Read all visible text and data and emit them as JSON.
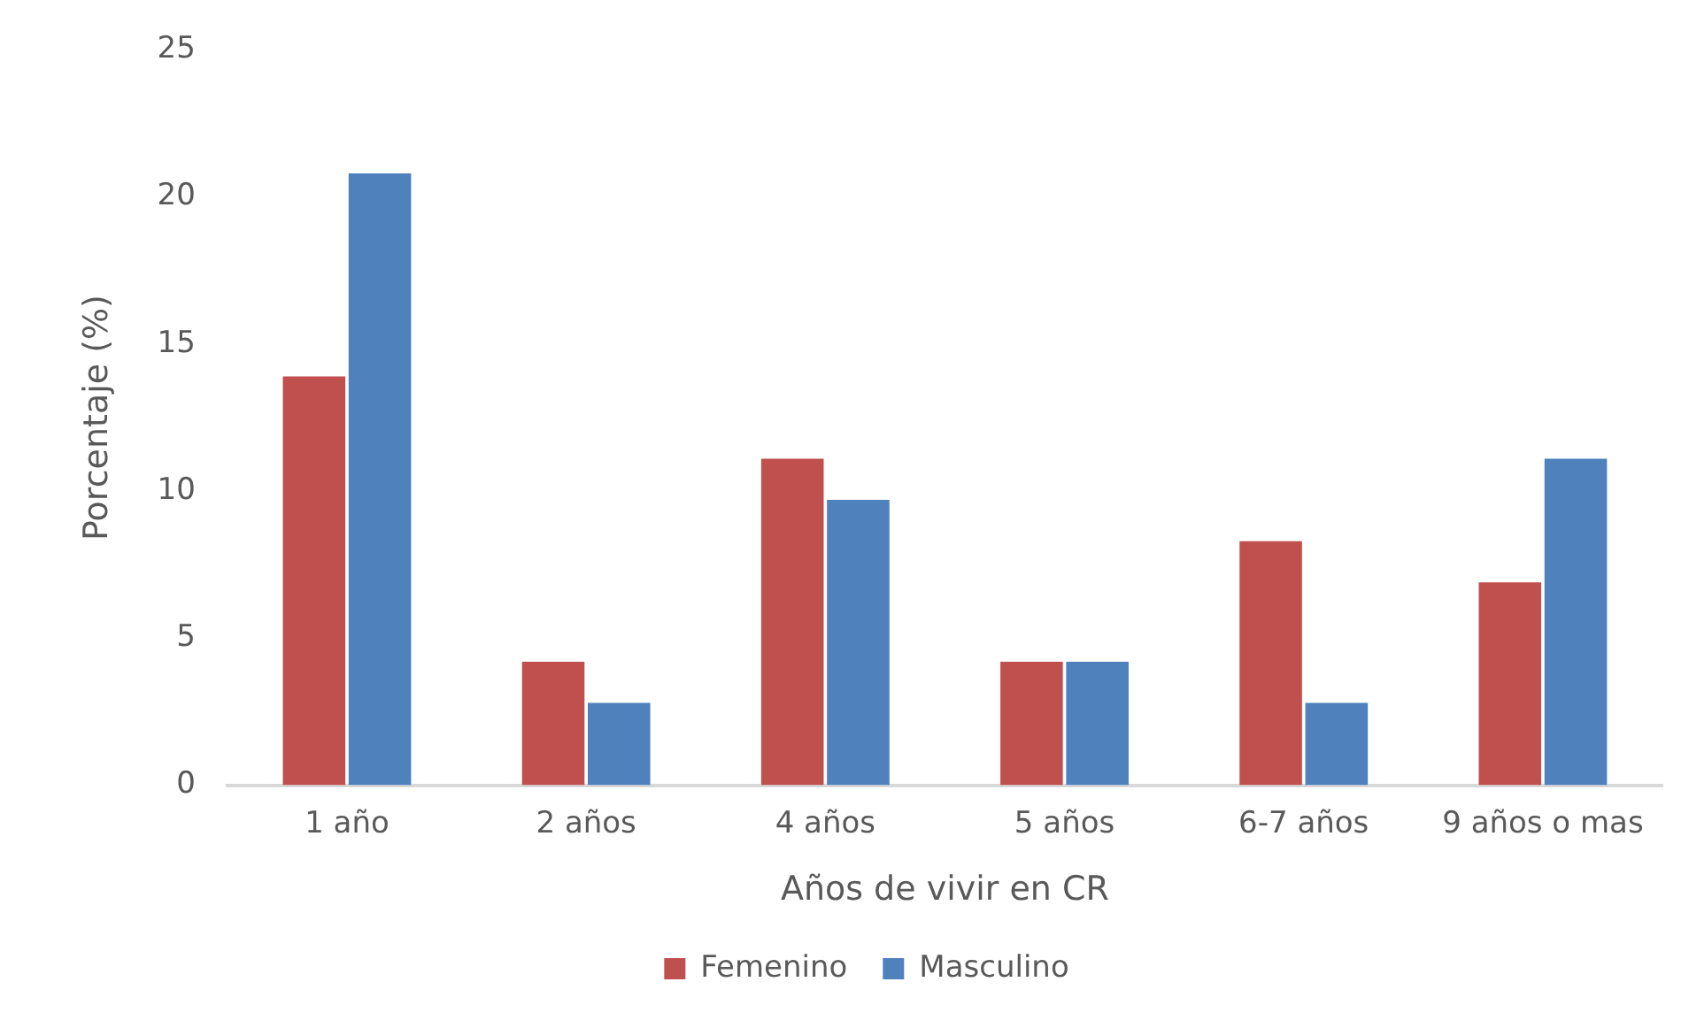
{
  "chart_data": {
    "type": "bar",
    "xlabel": "Años de vivir en CR",
    "ylabel": "Porcentaje (%)",
    "categories": [
      "1 año",
      "2 años",
      "4 años",
      "5 años",
      "6-7 años",
      "9 años o mas"
    ],
    "series": [
      {
        "name": "Femenino",
        "color": "#c0504d",
        "values": [
          13.9,
          4.2,
          11.1,
          4.2,
          8.3,
          6.9
        ]
      },
      {
        "name": "Masculino",
        "color": "#4f81bd",
        "values": [
          20.8,
          2.8,
          9.7,
          4.2,
          2.8,
          11.1
        ]
      }
    ],
    "ylim": [
      0,
      25
    ],
    "yticks": [
      0,
      5,
      10,
      15,
      20,
      25
    ],
    "grid": false,
    "legend": "bottom"
  }
}
